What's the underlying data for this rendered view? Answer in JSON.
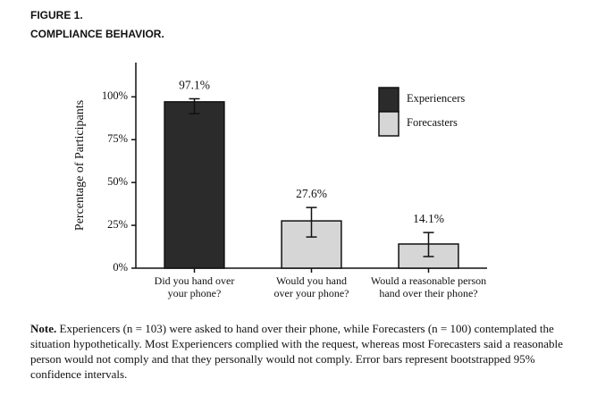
{
  "chart_data": {
    "type": "bar",
    "title": "FIGURE 1.",
    "subtitle": "COMPLIANCE BEHAVIOR.",
    "y_label": "Percentage of Participants",
    "categories": [
      "Did you hand over\nyour phone?",
      "Would you hand\nover your phone?",
      "Would a reasonable person\nhand over their phone?"
    ],
    "series": [
      {
        "name": "Experiencers",
        "color": "#2b2b2b",
        "values": [
          97.1,
          null,
          null
        ],
        "value_labels": [
          "97.1%",
          null,
          null
        ],
        "ci_low": [
          90.1,
          null,
          null
        ],
        "ci_high": [
          98.9,
          null,
          null
        ]
      },
      {
        "name": "Forecasters",
        "color": "#d6d6d6",
        "values": [
          null,
          27.6,
          14.1
        ],
        "value_labels": [
          null,
          "27.6%",
          "14.1%"
        ],
        "ci_low": [
          null,
          18.2,
          6.8
        ],
        "ci_high": [
          null,
          35.4,
          20.8
        ]
      }
    ],
    "ylim": [
      0,
      120
    ],
    "yticks": [
      {
        "value": 0,
        "label": "0%"
      },
      {
        "value": 25,
        "label": "25%"
      },
      {
        "value": 50,
        "label": "50%"
      },
      {
        "value": 75,
        "label": "75%"
      },
      {
        "value": 100,
        "label": "100%"
      }
    ],
    "legend": "top right",
    "note_label": "Note.",
    "note": "Experiencers (n = 103) were asked to hand over their phone, while Forecasters (n = 100) contemplated the situation hypothetically. Most Experiencers complied with the request, whereas most Forecasters said a reasonable person would not comply and that they personally would not comply. Error bars represent bootstrapped 95% confidence intervals."
  }
}
